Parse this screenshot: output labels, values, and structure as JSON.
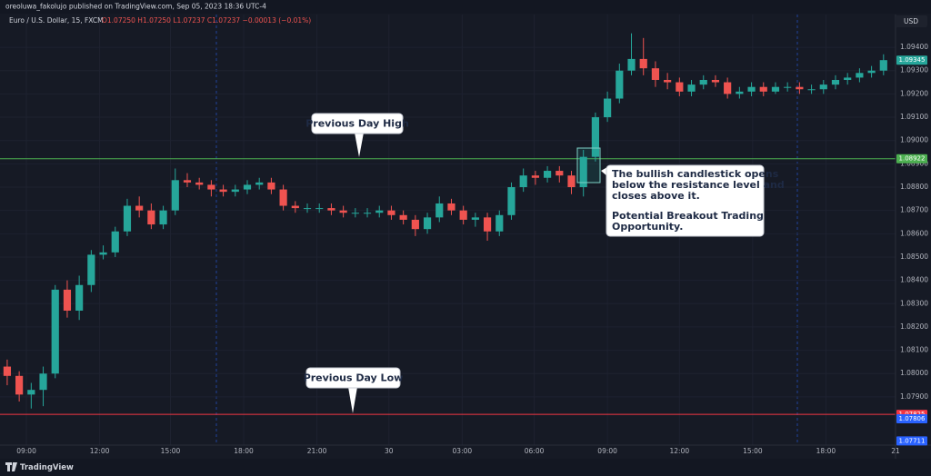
{
  "header": {
    "publisher": "oreoluwa_fakolujo published on TradingView.com, Sep 05, 2023 18:36 UTC-4",
    "currency": "USD",
    "brand": "TradingView"
  },
  "chart_data": {
    "type": "candlestick",
    "title": "Euro / U.S. Dollar, 15, FXCM",
    "subtitle": "O1.07250 H1.07250 L1.07237 C1.07237 −0.00013 (−0.01%)",
    "up_color": "#26a69a",
    "down_color": "#ef5350",
    "grid": true,
    "ylim": [
      1.07693,
      1.09603
    ],
    "yticks": [
      {
        "value": 1.079,
        "label": "1.07900"
      },
      {
        "value": 1.08,
        "label": "1.08000"
      },
      {
        "value": 1.081,
        "label": "1.08100"
      },
      {
        "value": 1.082,
        "label": "1.08200"
      },
      {
        "value": 1.083,
        "label": "1.08300"
      },
      {
        "value": 1.084,
        "label": "1.08400"
      },
      {
        "value": 1.085,
        "label": "1.08500"
      },
      {
        "value": 1.086,
        "label": "1.08600"
      },
      {
        "value": 1.087,
        "label": "1.08700"
      },
      {
        "value": 1.088,
        "label": "1.08800"
      },
      {
        "value": 1.089,
        "label": "1.08900"
      },
      {
        "value": 1.09,
        "label": "1.09000"
      },
      {
        "value": 1.091,
        "label": "1.09100"
      },
      {
        "value": 1.092,
        "label": "1.09200"
      },
      {
        "value": 1.093,
        "label": "1.09300"
      },
      {
        "value": 1.094,
        "label": "1.09400"
      }
    ],
    "xlim": [
      -0.6,
      74
    ],
    "xticks": [
      {
        "value": 1.6,
        "label": "09:00"
      },
      {
        "value": 7.7,
        "label": "12:00"
      },
      {
        "value": 13.6,
        "label": "15:00"
      },
      {
        "value": 19.7,
        "label": "18:00"
      },
      {
        "value": 25.8,
        "label": "21:00"
      },
      {
        "value": 31.8,
        "label": "30"
      },
      {
        "value": 37.9,
        "label": "03:00"
      },
      {
        "value": 43.9,
        "label": "06:00"
      },
      {
        "value": 50,
        "label": "09:00"
      },
      {
        "value": 56,
        "label": "12:00"
      },
      {
        "value": 62.1,
        "label": "15:00"
      },
      {
        "value": 68.2,
        "label": "18:00"
      },
      {
        "value": 74,
        "label": "21"
      }
    ],
    "open": [
      1.0803,
      1.0799,
      1.0791,
      1.0793,
      1.08,
      1.0836,
      1.0827,
      1.0838,
      1.0851,
      1.0852,
      1.0861,
      1.0872,
      1.087,
      1.0864,
      1.087,
      1.0883,
      1.0882,
      1.0881,
      1.0879,
      1.0878,
      1.0879,
      1.0881,
      1.0882,
      1.0879,
      1.0872,
      1.0871,
      1.0871,
      1.0871,
      1.087,
      1.0869,
      1.0869,
      1.0869,
      1.087,
      1.0868,
      1.0866,
      1.0862,
      1.0867,
      1.0873,
      1.087,
      1.0866,
      1.0867,
      1.0861,
      1.0868,
      1.088,
      1.0885,
      1.0884,
      1.0887,
      1.0885,
      1.088,
      1.0893,
      1.091,
      1.0918,
      1.093,
      1.0935,
      1.0931,
      1.0926,
      1.0925,
      1.0921,
      1.0924,
      1.0926,
      1.0925,
      1.092,
      1.0921,
      1.0923,
      1.0921,
      1.0923,
      1.0923,
      1.0922,
      1.0922,
      1.0924,
      1.0926,
      1.0927,
      1.0929,
      1.093
    ],
    "high": [
      1.0806,
      1.0801,
      1.0796,
      1.0803,
      1.0838,
      1.084,
      1.0842,
      1.0853,
      1.0855,
      1.0863,
      1.0875,
      1.0876,
      1.0873,
      1.0872,
      1.0888,
      1.0886,
      1.0884,
      1.0883,
      1.0881,
      1.0881,
      1.0883,
      1.0884,
      1.0884,
      1.0881,
      1.0874,
      1.0873,
      1.0873,
      1.0873,
      1.0872,
      1.0871,
      1.0871,
      1.0872,
      1.0872,
      1.087,
      1.0868,
      1.0869,
      1.0876,
      1.0875,
      1.0872,
      1.0869,
      1.0869,
      1.087,
      1.0882,
      1.0888,
      1.0887,
      1.0889,
      1.0889,
      1.0887,
      1.0896,
      1.0912,
      1.0921,
      1.0933,
      1.0946,
      1.0944,
      1.0934,
      1.0929,
      1.0927,
      1.0926,
      1.0928,
      1.0928,
      1.0927,
      1.0923,
      1.0925,
      1.0925,
      1.0925,
      1.0925,
      1.0925,
      1.0924,
      1.0926,
      1.0928,
      1.0929,
      1.0931,
      1.0932,
      1.0937
    ],
    "low": [
      1.0795,
      1.0788,
      1.0785,
      1.0786,
      1.0798,
      1.0824,
      1.0823,
      1.0835,
      1.0849,
      1.085,
      1.0859,
      1.0867,
      1.0862,
      1.0862,
      1.0868,
      1.088,
      1.0879,
      1.0876,
      1.0876,
      1.0876,
      1.0877,
      1.0879,
      1.0877,
      1.087,
      1.0869,
      1.0869,
      1.0869,
      1.0868,
      1.0867,
      1.0867,
      1.0867,
      1.0867,
      1.0866,
      1.0864,
      1.0859,
      1.086,
      1.0865,
      1.0868,
      1.0864,
      1.0863,
      1.0857,
      1.0859,
      1.0866,
      1.0878,
      1.0881,
      1.0882,
      1.0882,
      1.0877,
      1.0876,
      1.0891,
      1.0908,
      1.0916,
      1.0928,
      1.0928,
      1.0923,
      1.0922,
      1.0919,
      1.0919,
      1.0922,
      1.0923,
      1.0918,
      1.0918,
      1.0919,
      1.0919,
      1.092,
      1.0921,
      1.092,
      1.092,
      1.092,
      1.0922,
      1.0924,
      1.0925,
      1.0927,
      1.0928
    ],
    "close": [
      1.0799,
      1.0791,
      1.0793,
      1.08,
      1.0836,
      1.0827,
      1.0838,
      1.0851,
      1.0852,
      1.0861,
      1.0872,
      1.087,
      1.0864,
      1.087,
      1.0883,
      1.0882,
      1.0881,
      1.0879,
      1.0878,
      1.0879,
      1.0881,
      1.0882,
      1.0879,
      1.0872,
      1.0871,
      1.0871,
      1.0871,
      1.087,
      1.0869,
      1.0869,
      1.0869,
      1.087,
      1.0868,
      1.0866,
      1.0862,
      1.0867,
      1.0873,
      1.087,
      1.0866,
      1.0867,
      1.0861,
      1.0868,
      1.088,
      1.0885,
      1.0884,
      1.0887,
      1.0885,
      1.088,
      1.0893,
      1.091,
      1.0918,
      1.093,
      1.0935,
      1.0931,
      1.0926,
      1.0925,
      1.0921,
      1.0924,
      1.0926,
      1.0925,
      1.092,
      1.0921,
      1.0923,
      1.0921,
      1.0923,
      1.0923,
      1.0922,
      1.0922,
      1.0924,
      1.0926,
      1.0927,
      1.0929,
      1.093,
      1.09345
    ],
    "levels": [
      {
        "name": "Previous Day High",
        "value": 1.08922,
        "color": "#4caf50"
      },
      {
        "name": "Previous Day Low",
        "value": 1.07825,
        "color": "#f23645"
      }
    ],
    "price_labels": [
      {
        "value": 1.09345,
        "color": "#26a69a"
      },
      {
        "value": 1.08922,
        "color": "#4caf50"
      },
      {
        "value": 1.07825,
        "color": "#f23645"
      },
      {
        "value": 1.07806,
        "color": "#2962ff"
      },
      {
        "value": 1.07711,
        "color": "#2962ff"
      }
    ],
    "annotation": [
      "The bullish candlestick opens",
      "below the resistance level and",
      "closes above it.",
      "Potential Breakout Trading",
      "Opportunity."
    ]
  }
}
